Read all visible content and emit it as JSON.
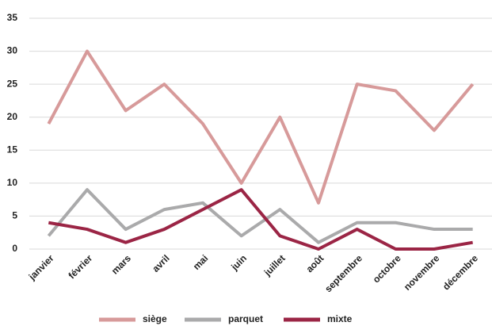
{
  "chart_data": {
    "type": "line",
    "categories": [
      "janvier",
      "février",
      "mars",
      "avril",
      "mai",
      "juin",
      "juillet",
      "août",
      "septembre",
      "octobre",
      "novembre",
      "décembre"
    ],
    "series": [
      {
        "name": "siège",
        "color": "#d79a9a",
        "values": [
          19,
          30,
          21,
          25,
          19,
          10,
          20,
          7,
          25,
          24,
          18,
          25
        ]
      },
      {
        "name": "parquet",
        "color": "#aaaaab",
        "values": [
          2,
          9,
          3,
          6,
          7,
          2,
          6,
          1,
          4,
          4,
          3,
          3
        ]
      },
      {
        "name": "mixte",
        "color": "#9b2545",
        "values": [
          4,
          3,
          1,
          3,
          6,
          9,
          2,
          0,
          3,
          0,
          0,
          1
        ]
      }
    ],
    "ylim": [
      0,
      35
    ],
    "yticks": [
      0,
      5,
      10,
      15,
      20,
      25,
      30,
      35
    ],
    "grid": true,
    "legend": "bottom"
  }
}
